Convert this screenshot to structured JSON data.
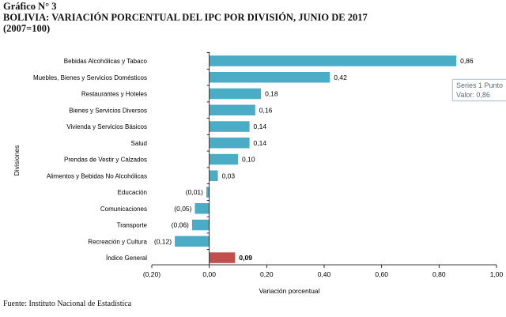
{
  "header": {
    "label": "Gráfico N° 3",
    "title": "BOLIVIA: VARIACIÓN PORCENTUAL DEL IPC POR DIVISIÓN, JUNIO DE 2017",
    "subtitle": "(2007=100)"
  },
  "source": "Fuente: Instituto Nacional de Estadística",
  "tooltip": {
    "line1": "Series 1 Punto",
    "line2": "Valor: 0,86"
  },
  "colors": {
    "bar": "#4bacc6",
    "highlight": "#c0504d",
    "axis": "#000000",
    "text": "#000000"
  },
  "chart_data": {
    "type": "bar",
    "orientation": "horizontal",
    "ylabel": "Divisiones",
    "xlabel": "Variación porcentual",
    "xlim": [
      -0.2,
      1.0
    ],
    "xticks": [
      "(0,20)",
      "0,00",
      "0,20",
      "0,40",
      "0,60",
      "0,80",
      "1,00"
    ],
    "grid": false,
    "categories": [
      "Bebidas Alcohólicas y Tabaco",
      "Muebles, Bienes y Servicios Domésticos",
      "Restaurantes  y Hoteles",
      "Bienes y Servicios Diversos",
      "Vivienda y Servicios Básicos",
      "Salud",
      "Prendas de Vestir y Calzados",
      "Alimentos y Bebidas No Alcohólicas",
      "Educación",
      "Comunicaciones",
      "Transporte",
      "Recreación y Cultura",
      "Índice General"
    ],
    "values": [
      0.86,
      0.42,
      0.18,
      0.16,
      0.14,
      0.14,
      0.1,
      0.03,
      -0.01,
      -0.05,
      -0.06,
      -0.12,
      0.09
    ],
    "data_labels": [
      "0,86",
      "0,42",
      "0,18",
      "0,16",
      "0,14",
      "0,14",
      "0,10",
      "0,03",
      "(0,01)",
      "(0,05)",
      "(0,06)",
      "(0,12)",
      "0,09"
    ],
    "highlighted_category": "Índice General"
  }
}
